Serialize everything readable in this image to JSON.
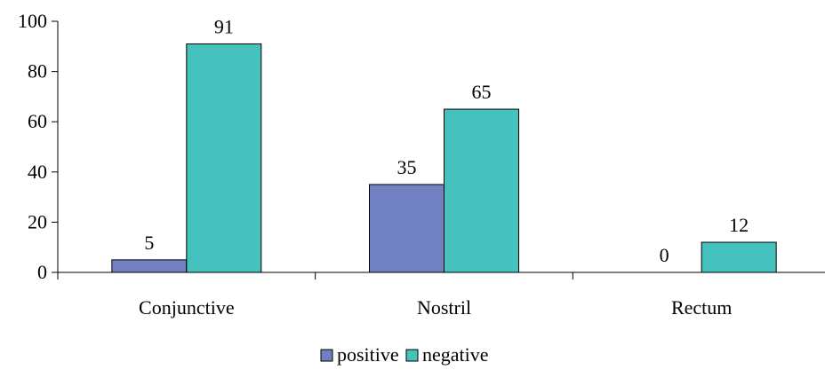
{
  "chart_data": {
    "type": "bar",
    "categories": [
      "Conjunctive",
      "Nostril",
      "Rectum"
    ],
    "series": [
      {
        "name": "positive",
        "values": [
          5,
          35,
          0
        ],
        "color": "#7080C0"
      },
      {
        "name": "negative",
        "values": [
          91,
          65,
          12
        ],
        "color": "#46C2BE"
      }
    ],
    "ylim": [
      0,
      100
    ],
    "yticks": [
      0,
      20,
      40,
      60,
      80,
      100
    ],
    "title": "",
    "xlabel": "",
    "ylabel": "",
    "grid": false,
    "legend": "bottom-center"
  }
}
